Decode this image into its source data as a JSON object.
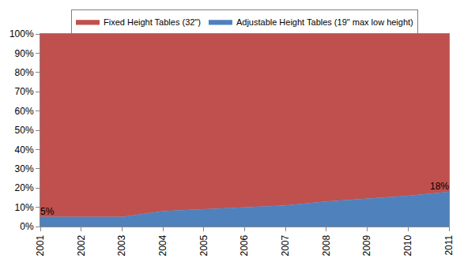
{
  "chart_data": {
    "type": "area",
    "stacked": true,
    "x": [
      2001,
      2002,
      2003,
      2004,
      2005,
      2006,
      2007,
      2008,
      2009,
      2010,
      2011
    ],
    "xlim": [
      2001,
      2011
    ],
    "xticks": [
      2001,
      2002,
      2003,
      2004,
      2005,
      2006,
      2007,
      2008,
      2009,
      2010,
      2011
    ],
    "ylim": [
      0,
      100
    ],
    "yticks": [
      {
        "value": 0,
        "label": "0%"
      },
      {
        "value": 10,
        "label": "10%"
      },
      {
        "value": 20,
        "label": "20%"
      },
      {
        "value": 30,
        "label": "30%"
      },
      {
        "value": 40,
        "label": "40%"
      },
      {
        "value": 50,
        "label": "50%"
      },
      {
        "value": 60,
        "label": "60%"
      },
      {
        "value": 70,
        "label": "70%"
      },
      {
        "value": 80,
        "label": "80%"
      },
      {
        "value": 90,
        "label": "90%"
      },
      {
        "value": 100,
        "label": "100%"
      }
    ],
    "grid": false,
    "legend": "top",
    "data_labels": true,
    "series": [
      {
        "name": "Adjustable Height Tables (19\" max low height)",
        "color": "#4F81BD",
        "values": [
          5,
          5,
          5,
          8,
          9,
          10,
          11,
          13,
          14.5,
          16,
          18
        ],
        "value_labels": [
          "5%",
          null,
          null,
          null,
          null,
          null,
          null,
          null,
          null,
          null,
          "18%"
        ]
      },
      {
        "name": "Fixed Height Tables (32\")",
        "color": "#C0504D",
        "values": [
          95,
          95,
          95,
          92,
          91,
          90,
          89,
          87,
          85.5,
          84,
          82
        ]
      }
    ]
  }
}
